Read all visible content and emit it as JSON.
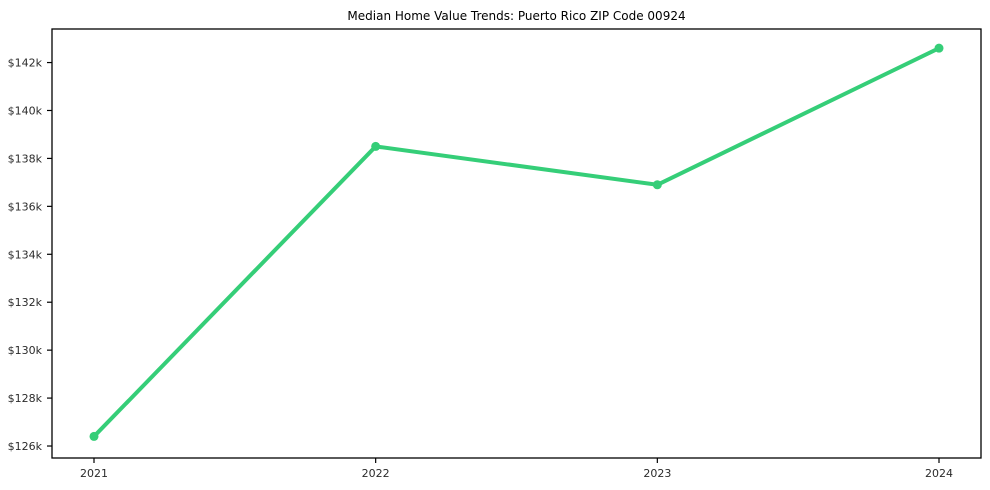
{
  "figure": {
    "background": "#ffffff",
    "spine_color": "#000000",
    "tick_label_color": "#2b2b2b",
    "title_color": "#000000"
  },
  "chart_data": {
    "type": "line",
    "title": "Median Home Value Trends: Puerto Rico ZIP Code 00924",
    "categories": [
      "2021",
      "2022",
      "2023",
      "2024"
    ],
    "series": [
      {
        "name": "Median Home Value",
        "values": [
          126.4,
          138.5,
          136.9,
          142.6
        ],
        "color": "#35ce78",
        "line_width": 4,
        "marker": "circle",
        "marker_radius": 4.5
      }
    ],
    "xlabel": "",
    "ylabel": "",
    "y_unit": "USD (thousands)",
    "ylim": [
      125.5,
      143.4
    ],
    "yticks": [
      126,
      128,
      130,
      132,
      134,
      136,
      138,
      140,
      142
    ],
    "ytick_labels": [
      "$126k",
      "$128k",
      "$130k",
      "$132k",
      "$134k",
      "$136k",
      "$138k",
      "$140k",
      "$142k"
    ],
    "grid": false,
    "legend": null
  }
}
